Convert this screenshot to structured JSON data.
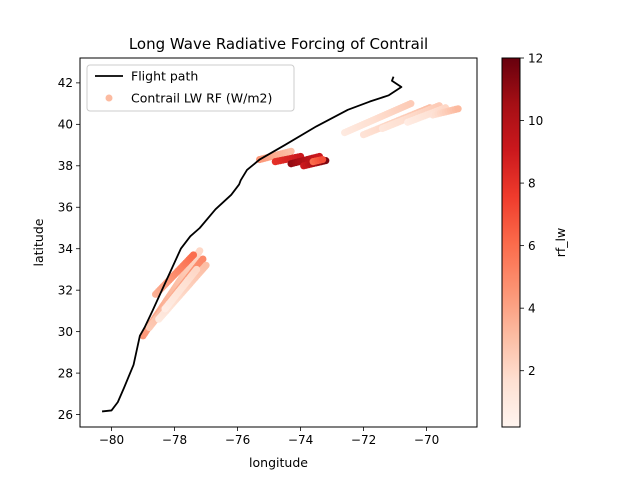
{
  "chart_data": {
    "type": "scatter",
    "title": "Long Wave Radiative Forcing of Contrail",
    "xlabel": "longitude",
    "ylabel": "latitude",
    "xlim": [
      -81.0,
      -68.4
    ],
    "ylim": [
      25.4,
      43.2
    ],
    "xticks": [
      -80,
      -78,
      -76,
      -74,
      -72,
      -70
    ],
    "yticks": [
      26,
      28,
      30,
      32,
      34,
      36,
      38,
      40,
      42
    ],
    "xtick_labels": [
      "−80",
      "−78",
      "−76",
      "−74",
      "−72",
      "−70"
    ],
    "ytick_labels": [
      "26",
      "28",
      "30",
      "32",
      "34",
      "36",
      "38",
      "40",
      "42"
    ],
    "legend": {
      "placement": "upper-left",
      "entries": [
        {
          "label": "Flight path",
          "kind": "line",
          "color": "#000000"
        },
        {
          "label": "Contrail LW RF (W/m2)",
          "kind": "marker",
          "color": "#fcbba1"
        }
      ]
    },
    "colorbar": {
      "label": "rf_lw",
      "min": 0.2,
      "max": 12,
      "ticks": [
        2,
        4,
        6,
        8,
        10,
        12
      ],
      "tick_labels": [
        "2",
        "4",
        "6",
        "8",
        "10",
        "12"
      ],
      "colormap": "Reds"
    },
    "flight_path": {
      "name": "Flight path",
      "lon": [
        -80.3,
        -80.0,
        -79.8,
        -79.6,
        -79.3,
        -79.1,
        -78.95,
        -78.7,
        -78.4,
        -78.1,
        -77.8,
        -77.5,
        -77.2,
        -76.7,
        -76.2,
        -75.95,
        -75.9,
        -75.7,
        -75.3,
        -74.5,
        -73.5,
        -72.5,
        -71.8,
        -71.2,
        -70.8,
        -70.95,
        -71.1,
        -71.05
      ],
      "lat": [
        26.15,
        26.2,
        26.6,
        27.3,
        28.4,
        29.8,
        30.2,
        31.0,
        32.0,
        33.0,
        34.0,
        34.6,
        35.0,
        35.9,
        36.6,
        37.1,
        37.3,
        37.8,
        38.3,
        39.0,
        39.9,
        40.7,
        41.1,
        41.4,
        41.8,
        41.95,
        42.1,
        42.3
      ]
    },
    "contrail_lw_rf": {
      "name": "Contrail LW RF (W/m2)",
      "unit": "W/m2",
      "south_segment": [
        {
          "lon0": -79.0,
          "lat0": 29.8,
          "lon1": -77.2,
          "lat1": 33.9,
          "v0": 4.5,
          "v1": 2.0
        },
        {
          "lon0": -78.8,
          "lat0": 30.2,
          "lon1": -77.1,
          "lat1": 33.5,
          "v0": 2.5,
          "v1": 5.0
        },
        {
          "lon0": -78.5,
          "lat0": 30.6,
          "lon1": -77.0,
          "lat1": 33.2,
          "v0": 1.0,
          "v1": 3.0
        },
        {
          "lon0": -78.3,
          "lat0": 31.1,
          "lon1": -77.3,
          "lat1": 33.0,
          "v0": 0.8,
          "v1": 2.0
        },
        {
          "lon0": -78.6,
          "lat0": 31.8,
          "lon1": -77.4,
          "lat1": 33.7,
          "v0": 3.5,
          "v1": 6.0
        }
      ],
      "north_tracks": [
        {
          "lon0": -75.3,
          "lat0": 38.3,
          "lon1": -74.3,
          "lat1": 38.7,
          "v0": 4.5,
          "v1": 3.0
        },
        {
          "lon0": -74.8,
          "lat0": 38.2,
          "lon1": -74.0,
          "lat1": 38.45,
          "v0": 8.0,
          "v1": 9.0
        },
        {
          "lon0": -74.3,
          "lat0": 38.1,
          "lon1": -73.4,
          "lat1": 38.45,
          "v0": 11.0,
          "v1": 9.0
        },
        {
          "lon0": -73.9,
          "lat0": 38.0,
          "lon1": -73.2,
          "lat1": 38.25,
          "v0": 9.0,
          "v1": 11.5
        },
        {
          "lon0": -73.6,
          "lat0": 38.2,
          "lon1": -73.3,
          "lat1": 38.3,
          "v0": 6.0,
          "v1": 7.0
        },
        {
          "lon0": -72.6,
          "lat0": 39.6,
          "lon1": -70.5,
          "lat1": 41.0,
          "v0": 1.0,
          "v1": 2.5
        },
        {
          "lon0": -72.0,
          "lat0": 39.5,
          "lon1": -69.9,
          "lat1": 40.8,
          "v0": 1.5,
          "v1": 3.0
        },
        {
          "lon0": -71.4,
          "lat0": 39.8,
          "lon1": -69.6,
          "lat1": 40.9,
          "v0": 1.2,
          "v1": 2.5
        },
        {
          "lon0": -70.6,
          "lat0": 40.1,
          "lon1": -69.4,
          "lat1": 40.8,
          "v0": 0.8,
          "v1": 2.0
        },
        {
          "lon0": -69.8,
          "lat0": 40.45,
          "lon1": -69.0,
          "lat1": 40.75,
          "v0": 1.5,
          "v1": 3.2
        }
      ]
    }
  }
}
